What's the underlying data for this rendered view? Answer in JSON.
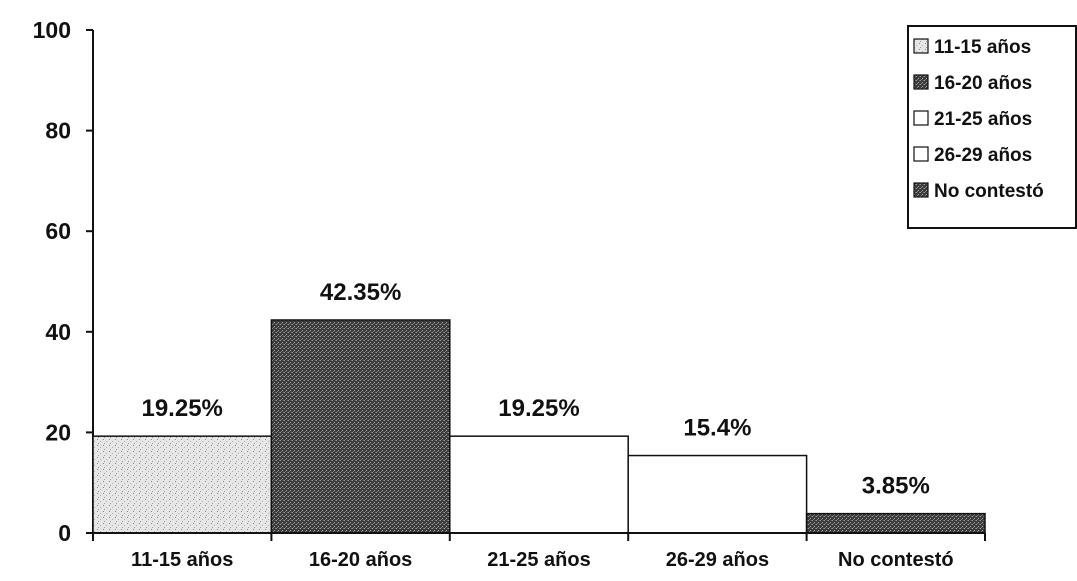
{
  "chart_data": {
    "type": "bar",
    "categories": [
      "11-15 años",
      "16-20 años",
      "21-25 años",
      "26-29 años",
      "No contestó"
    ],
    "values": [
      19.25,
      42.35,
      19.25,
      15.4,
      3.85
    ],
    "data_labels": [
      "19.25%",
      "42.35%",
      "19.25%",
      "15.4%",
      "3.85%"
    ],
    "ylim": [
      0,
      100
    ],
    "yticks": [
      0,
      20,
      40,
      60,
      80,
      100
    ],
    "ytick_labels": [
      "0",
      "20",
      "40",
      "60",
      "80",
      "100"
    ],
    "title": "",
    "xlabel": "",
    "ylabel": "",
    "grid": false,
    "legend": {
      "placement": "top-right",
      "entries": [
        "11-15 años",
        "16-20 años",
        "21-25 años",
        "26-29 años",
        "No contestó"
      ]
    },
    "bar_fills": [
      "light-speckled",
      "dark-speckled",
      "white",
      "white",
      "dark-speckled"
    ]
  },
  "colors": {
    "light_speckled": "#dcdcdc",
    "dark_speckled": "#4a4a4a",
    "white": "#ffffff",
    "outline": "#111111"
  }
}
